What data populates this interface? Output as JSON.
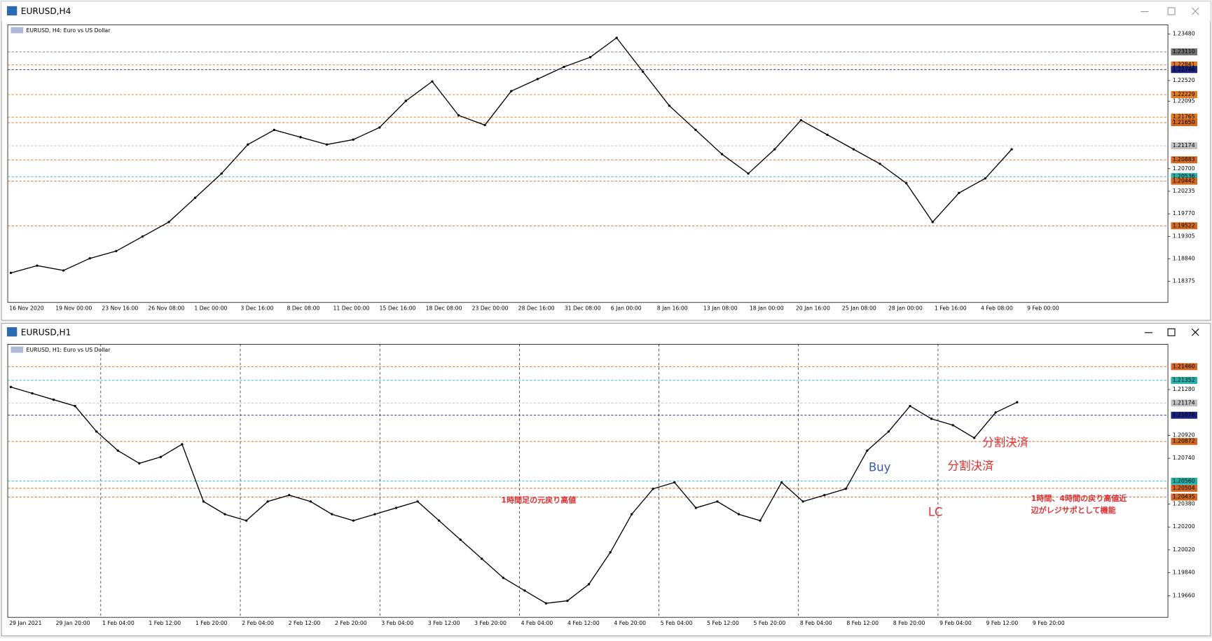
{
  "windows": [
    {
      "title": "EURUSD,H4",
      "symbol_label": "EURUSD, H4:  Euro vs US Dollar",
      "ylim": [
        1.1794,
        1.2367
      ],
      "price_ticks": [
        {
          "value": 1.2348,
          "label": "1.23480"
        },
        {
          "value": 1.2252,
          "label": "1.22520"
        },
        {
          "value": 1.22095,
          "label": "1.22095"
        },
        {
          "value": 1.207,
          "label": "1.20700"
        },
        {
          "value": 1.20235,
          "label": "1.20235"
        },
        {
          "value": 1.1977,
          "label": "1.19770"
        },
        {
          "value": 1.19305,
          "label": "1.19305"
        },
        {
          "value": 1.1884,
          "label": "1.18840"
        },
        {
          "value": 1.18375,
          "label": "1.18375"
        }
      ],
      "levels": [
        {
          "value": 1.2311,
          "label": "1.23110",
          "color": "#707070"
        },
        {
          "value": 1.22841,
          "label": "1.22841",
          "color": "#e07b20"
        },
        {
          "value": 1.22746,
          "label": "1.22746",
          "color": "#1a237e"
        },
        {
          "value": 1.22229,
          "label": "1.22229",
          "color": "#e07b20"
        },
        {
          "value": 1.21765,
          "label": "1.21765",
          "color": "#e07b20"
        },
        {
          "value": 1.2165,
          "label": "1.21650",
          "color": "#d2691e"
        },
        {
          "value": 1.21174,
          "label": "1.21174",
          "color": "#c0c0c0"
        },
        {
          "value": 1.20883,
          "label": "1.20883",
          "color": "#d2691e"
        },
        {
          "value": 1.20536,
          "label": "1.20536",
          "color": "#20b2aa"
        },
        {
          "value": 1.20442,
          "label": "1.20442",
          "color": "#d2691e"
        },
        {
          "value": 1.19522,
          "label": "1.19522",
          "color": "#d2691e"
        }
      ],
      "time_labels": [
        "16 Nov 2020",
        "19 Nov 00:00",
        "23 Nov 16:00",
        "26 Nov 08:00",
        "1 Dec 00:00",
        "3 Dec 16:00",
        "8 Dec 08:00",
        "11 Dec 00:00",
        "15 Dec 16:00",
        "18 Dec 08:00",
        "23 Dec 00:00",
        "28 Dec 16:00",
        "31 Dec 08:00",
        "6 Jan 00:00",
        "8 Jan 16:00",
        "13 Jan 08:00",
        "18 Jan 00:00",
        "20 Jan 16:00",
        "25 Jan 08:00",
        "28 Jan 00:00",
        "1 Feb 16:00",
        "4 Feb 08:00",
        "9 Feb 00:00"
      ],
      "closes": [
        1.1855,
        1.187,
        1.186,
        1.1885,
        1.19,
        1.193,
        1.196,
        1.201,
        1.206,
        1.212,
        1.215,
        1.2135,
        1.212,
        1.213,
        1.2155,
        1.221,
        1.225,
        1.218,
        1.216,
        1.223,
        1.2255,
        1.228,
        1.23,
        1.234,
        1.227,
        1.22,
        1.215,
        1.21,
        1.206,
        1.211,
        1.217,
        1.214,
        1.211,
        1.208,
        1.204,
        1.196,
        1.202,
        1.205,
        1.211
      ],
      "annotations": []
    },
    {
      "title": "EURUSD,H1",
      "symbol_label": "EURUSD, H1:  Euro vs US Dollar",
      "ylim": [
        1.1949,
        1.21636
      ],
      "price_ticks": [
        {
          "value": 1.2128,
          "label": "1.21280"
        },
        {
          "value": 1.2092,
          "label": "1.20920"
        },
        {
          "value": 1.2074,
          "label": "1.20740"
        },
        {
          "value": 1.2038,
          "label": "1.20380"
        },
        {
          "value": 1.202,
          "label": "1.20200"
        },
        {
          "value": 1.2002,
          "label": "1.20020"
        },
        {
          "value": 1.1984,
          "label": "1.19840"
        },
        {
          "value": 1.1966,
          "label": "1.19660"
        }
      ],
      "levels": [
        {
          "value": 1.2146,
          "label": "1.21460",
          "color": "#d2691e"
        },
        {
          "value": 1.21352,
          "label": "1.21352",
          "color": "#20b2aa"
        },
        {
          "value": 1.21174,
          "label": "1.21174",
          "color": "#c0c0c0"
        },
        {
          "value": 1.21078,
          "label": "1.21078",
          "color": "#1a237e"
        },
        {
          "value": 1.20872,
          "label": "1.20872",
          "color": "#d2691e"
        },
        {
          "value": 1.2056,
          "label": "1.20560",
          "color": "#20b2aa"
        },
        {
          "value": 1.20504,
          "label": "1.20504",
          "color": "#d2691e"
        },
        {
          "value": 1.20435,
          "label": "1.20435",
          "color": "#d2691e"
        }
      ],
      "time_labels": [
        "29 Jan 2021",
        "29 Jan 20:00",
        "1 Feb 04:00",
        "1 Feb 12:00",
        "1 Feb 20:00",
        "2 Feb 04:00",
        "2 Feb 12:00",
        "2 Feb 20:00",
        "3 Feb 04:00",
        "3 Feb 12:00",
        "3 Feb 20:00",
        "4 Feb 04:00",
        "4 Feb 12:00",
        "4 Feb 20:00",
        "5 Feb 04:00",
        "5 Feb 12:00",
        "5 Feb 20:00",
        "8 Feb 04:00",
        "8 Feb 12:00",
        "8 Feb 20:00",
        "9 Feb 04:00",
        "9 Feb 12:00",
        "9 Feb 20:00"
      ],
      "closes": [
        1.213,
        1.2125,
        1.212,
        1.2115,
        1.2095,
        1.208,
        1.207,
        1.2075,
        1.2085,
        1.204,
        1.203,
        1.2025,
        1.204,
        1.2045,
        1.204,
        1.203,
        1.2025,
        1.203,
        1.2035,
        1.204,
        1.2025,
        1.201,
        1.1995,
        1.198,
        1.197,
        1.196,
        1.1962,
        1.1975,
        1.2,
        1.203,
        1.205,
        1.2055,
        1.2035,
        1.204,
        1.203,
        1.2025,
        1.2055,
        1.204,
        1.2045,
        1.205,
        1.208,
        1.2095,
        1.2115,
        1.2105,
        1.21,
        1.209,
        1.211,
        1.2118
      ],
      "annotations": [
        "Buy",
        "分割決済",
        "分割決済",
        "LC",
        "1時間足の元戻り高値",
        "1時間、4時間の戻り高値近",
        "辺がレジサポとして機能"
      ]
    }
  ]
}
